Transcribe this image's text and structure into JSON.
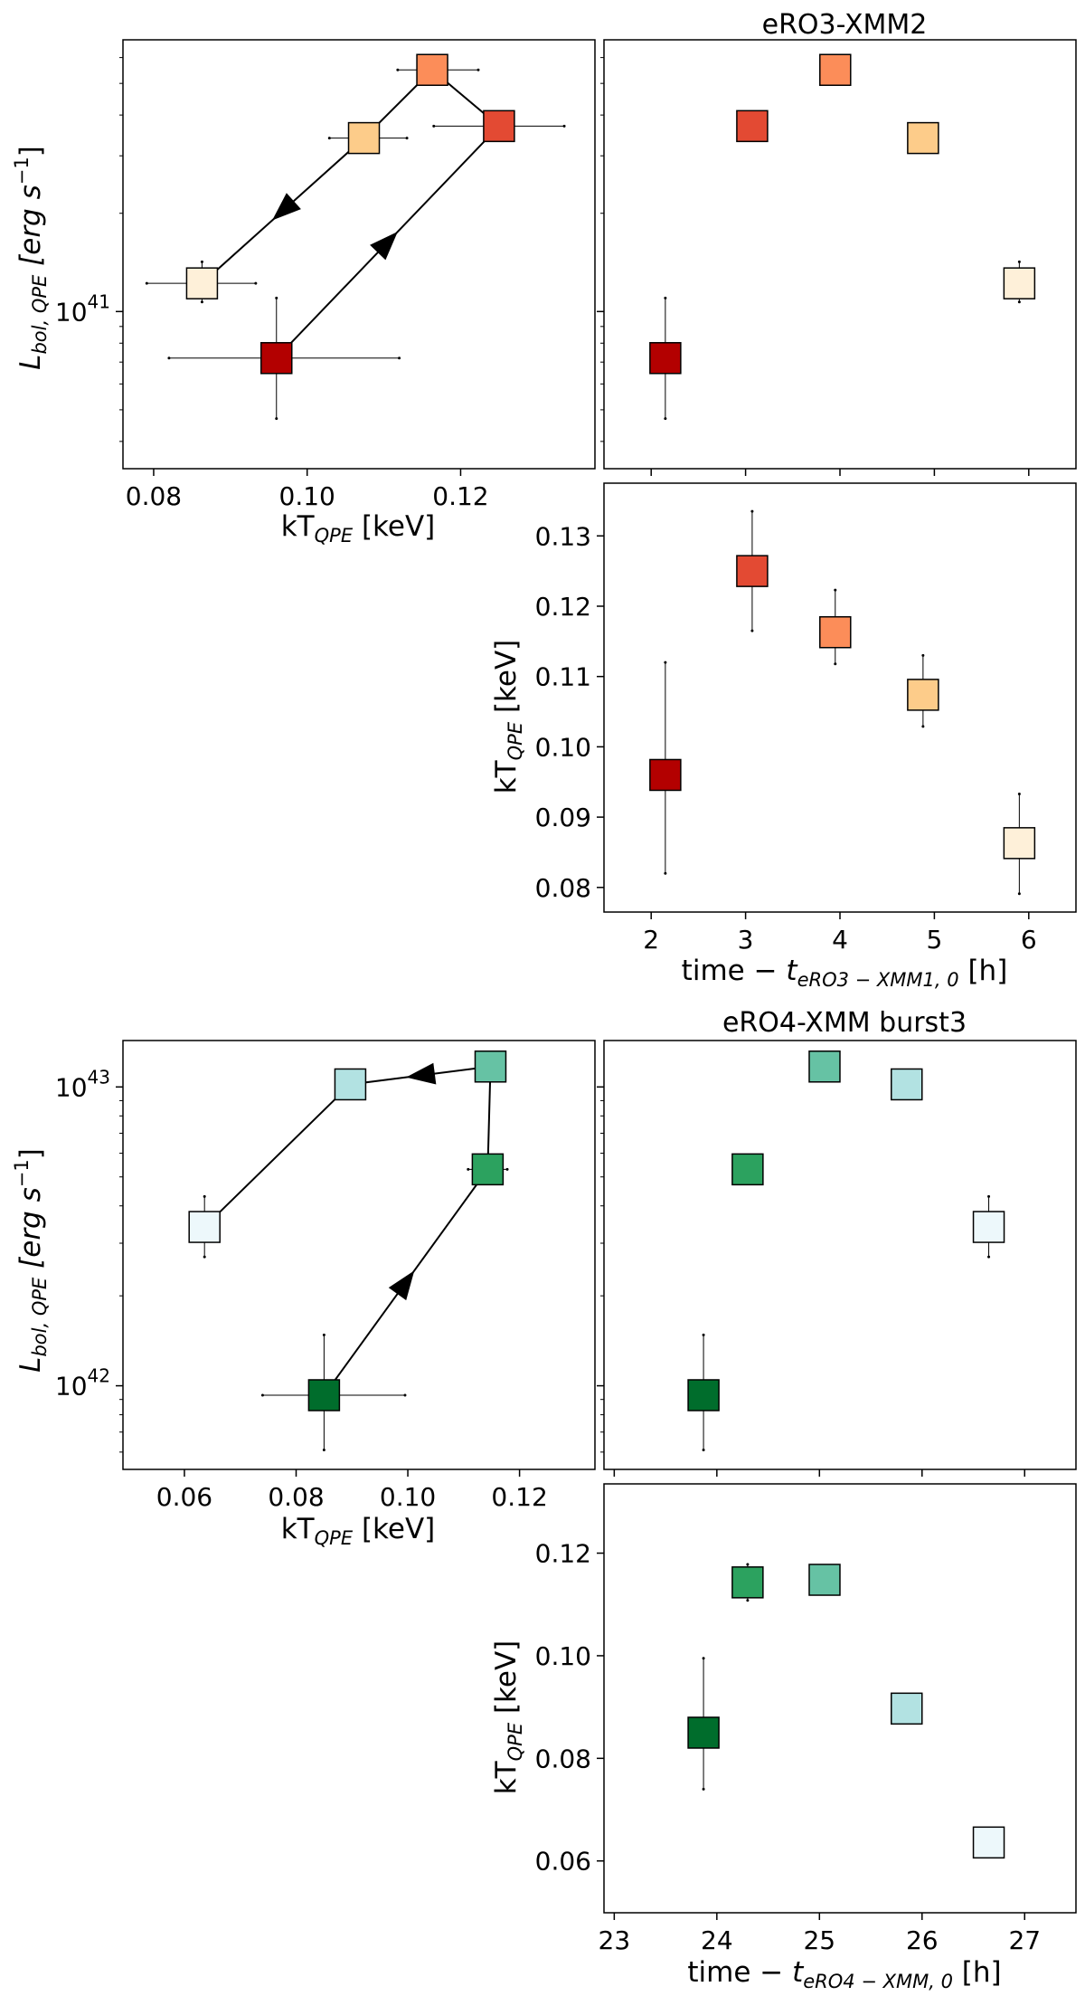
{
  "chart_data": [
    {
      "id": "top-lum-kt",
      "type": "scatter",
      "xlabel": "kT_QPE [keV]",
      "ylabel": "L_bol,QPE [erg s^-1]",
      "xlim": [
        0.076,
        0.1375
      ],
      "ylim": [
        3.3e+40,
        6.8e+41
      ],
      "yscale": "log",
      "xticks": [
        0.08,
        0.1,
        0.12
      ],
      "xtick_labels": [
        "0.08",
        "0.10",
        "0.12"
      ],
      "yticks": [
        1e+41
      ],
      "ytick_labels": [
        "10^41"
      ],
      "points": [
        {
          "x": 0.096,
          "y": 7.2e+40,
          "xerr": [
            0.014,
            0.016
          ],
          "yerr": [
            2.5e+40,
            3.8e+40
          ],
          "color": "#b30000"
        },
        {
          "x": 0.125,
          "y": 3.7e+41,
          "xerr": [
            0.0085,
            0.0085
          ],
          "yerr": [
            3e+40,
            3e+40
          ],
          "color": "#e34a33"
        },
        {
          "x": 0.1163,
          "y": 5.5e+41,
          "xerr": [
            0.0045,
            0.006
          ],
          "yerr": [
            2e+40,
            2e+40
          ],
          "color": "#fc8d59"
        },
        {
          "x": 0.1074,
          "y": 3.4e+41,
          "xerr": [
            0.0045,
            0.0056
          ],
          "yerr": [
            2e+40,
            2e+40
          ],
          "color": "#fdcc8a"
        },
        {
          "x": 0.0863,
          "y": 1.22e+41,
          "xerr": [
            0.0072,
            0.007
          ],
          "yerr": [
            1.5e+40,
            2e+40
          ],
          "color": "#fef0d9"
        }
      ],
      "path_order": [
        0,
        1,
        2,
        3,
        4
      ],
      "arrows_on_segments": [
        0,
        3
      ]
    },
    {
      "id": "top-lum-time",
      "type": "scatter",
      "title": "eRO3-XMM2",
      "xlim": [
        1.5,
        6.5
      ],
      "ylim": [
        3.3e+40,
        6.8e+41
      ],
      "yscale": "log",
      "xticks": [
        2,
        3,
        4,
        5,
        6
      ],
      "points": [
        {
          "x": 2.15,
          "y": 7.2e+40,
          "yerr": [
            2.5e+40,
            3.8e+40
          ],
          "color": "#b30000"
        },
        {
          "x": 3.07,
          "y": 3.7e+41,
          "yerr": [
            3e+40,
            3e+40
          ],
          "color": "#e34a33"
        },
        {
          "x": 3.95,
          "y": 5.5e+41,
          "yerr": [
            2e+40,
            2e+40
          ],
          "color": "#fc8d59"
        },
        {
          "x": 4.88,
          "y": 3.4e+41,
          "yerr": [
            2e+40,
            2e+40
          ],
          "color": "#fdcc8a"
        },
        {
          "x": 5.9,
          "y": 1.22e+41,
          "yerr": [
            1.5e+40,
            2e+40
          ],
          "color": "#fef0d9"
        }
      ]
    },
    {
      "id": "top-kt-time",
      "type": "scatter",
      "xlabel": "time − t_eRO3−XMM1,0 [h]",
      "ylabel": "kT_QPE [keV]",
      "xlim": [
        1.5,
        6.5
      ],
      "ylim": [
        0.0765,
        0.1375
      ],
      "xticks": [
        2,
        3,
        4,
        5,
        6
      ],
      "xtick_labels": [
        "2",
        "3",
        "4",
        "5",
        "6"
      ],
      "yticks": [
        0.08,
        0.09,
        0.1,
        0.11,
        0.12,
        0.13
      ],
      "ytick_labels": [
        "0.08",
        "0.09",
        "0.10",
        "0.11",
        "0.12",
        "0.13"
      ],
      "points": [
        {
          "x": 2.15,
          "y": 0.096,
          "yerr": [
            0.014,
            0.016
          ],
          "color": "#b30000"
        },
        {
          "x": 3.07,
          "y": 0.125,
          "yerr": [
            0.0085,
            0.0085
          ],
          "color": "#e34a33"
        },
        {
          "x": 3.95,
          "y": 0.1163,
          "yerr": [
            0.0045,
            0.006
          ],
          "color": "#fc8d59"
        },
        {
          "x": 4.88,
          "y": 0.1074,
          "yerr": [
            0.0045,
            0.0056
          ],
          "color": "#fdcc8a"
        },
        {
          "x": 5.9,
          "y": 0.0863,
          "yerr": [
            0.0072,
            0.007
          ],
          "color": "#fef0d9"
        }
      ]
    },
    {
      "id": "bottom-lum-kt",
      "type": "scatter",
      "xlabel": "kT_QPE [keV]",
      "ylabel": "L_bol,QPE [erg s^-1]",
      "xlim": [
        0.049,
        0.1335
      ],
      "ylim": [
        5.25e+41,
        1.43e+43
      ],
      "yscale": "log",
      "xticks": [
        0.06,
        0.08,
        0.1,
        0.12
      ],
      "xtick_labels": [
        "0.06",
        "0.08",
        "0.10",
        "0.12"
      ],
      "yticks": [
        1e+42,
        1e+43
      ],
      "ytick_labels": [
        "10^42",
        "10^43"
      ],
      "points": [
        {
          "x": 0.085,
          "y": 9.3e+41,
          "xerr": [
            0.011,
            0.0145
          ],
          "yerr": [
            3.2e+41,
            5.5e+41
          ],
          "color": "#006d2c"
        },
        {
          "x": 0.1143,
          "y": 5.3e+42,
          "xerr": [
            0.0035,
            0.0035
          ],
          "yerr": [
            3e+41,
            3e+41
          ],
          "color": "#2ca25f"
        },
        {
          "x": 0.1148,
          "y": 1.17e+43,
          "xerr": [
            0.001,
            0.001
          ],
          "yerr": [
            4e+41,
            4e+41
          ],
          "color": "#66c2a4"
        },
        {
          "x": 0.0897,
          "y": 1.02e+43,
          "xerr": [
            0.001,
            0.001
          ],
          "yerr": [
            3e+41,
            3e+41
          ],
          "color": "#b2e2e2"
        },
        {
          "x": 0.0636,
          "y": 3.4e+42,
          "xerr": [
            0.0023,
            0.0024
          ],
          "yerr": [
            7e+41,
            9e+41
          ],
          "color": "#edf8fb"
        }
      ],
      "path_order": [
        0,
        1,
        2,
        3,
        4
      ],
      "arrows_on_segments": [
        0,
        2
      ]
    },
    {
      "id": "bottom-lum-time",
      "type": "scatter",
      "title": "eRO4-XMM burst3",
      "xlim": [
        22.9,
        27.5
      ],
      "ylim": [
        5.25e+41,
        1.43e+43
      ],
      "yscale": "log",
      "xticks": [
        23,
        24,
        25,
        26,
        27
      ],
      "points": [
        {
          "x": 23.87,
          "y": 9.3e+41,
          "yerr": [
            3.2e+41,
            5.5e+41
          ],
          "color": "#006d2c"
        },
        {
          "x": 24.3,
          "y": 5.3e+42,
          "yerr": [
            3e+41,
            3e+41
          ],
          "color": "#2ca25f"
        },
        {
          "x": 25.05,
          "y": 1.17e+43,
          "yerr": [
            4e+41,
            4e+41
          ],
          "color": "#66c2a4"
        },
        {
          "x": 25.85,
          "y": 1.02e+43,
          "yerr": [
            3e+41,
            3e+41
          ],
          "color": "#b2e2e2"
        },
        {
          "x": 26.65,
          "y": 3.4e+42,
          "yerr": [
            7e+41,
            9e+41
          ],
          "color": "#edf8fb"
        }
      ]
    },
    {
      "id": "bottom-kt-time",
      "type": "scatter",
      "xlabel": "time − t_eRO4−XMM,0 [h]",
      "ylabel": "kT_QPE [keV]",
      "xlim": [
        22.9,
        27.5
      ],
      "ylim": [
        0.0499,
        0.1335
      ],
      "xticks": [
        23,
        24,
        25,
        26,
        27
      ],
      "xtick_labels": [
        "23",
        "24",
        "25",
        "26",
        "27"
      ],
      "yticks": [
        0.06,
        0.08,
        0.1,
        0.12
      ],
      "ytick_labels": [
        "0.06",
        "0.08",
        "0.10",
        "0.12"
      ],
      "points": [
        {
          "x": 23.87,
          "y": 0.085,
          "yerr": [
            0.011,
            0.0145
          ],
          "color": "#006d2c"
        },
        {
          "x": 24.3,
          "y": 0.1143,
          "yerr": [
            0.0035,
            0.0035
          ],
          "color": "#2ca25f"
        },
        {
          "x": 25.05,
          "y": 0.1148,
          "yerr": [
            0.001,
            0.001
          ],
          "color": "#66c2a4"
        },
        {
          "x": 25.85,
          "y": 0.0897,
          "yerr": [
            0.001,
            0.001
          ],
          "color": "#b2e2e2"
        },
        {
          "x": 26.65,
          "y": 0.0636,
          "yerr": [
            0.0023,
            0.0024
          ],
          "color": "#edf8fb"
        }
      ]
    }
  ]
}
